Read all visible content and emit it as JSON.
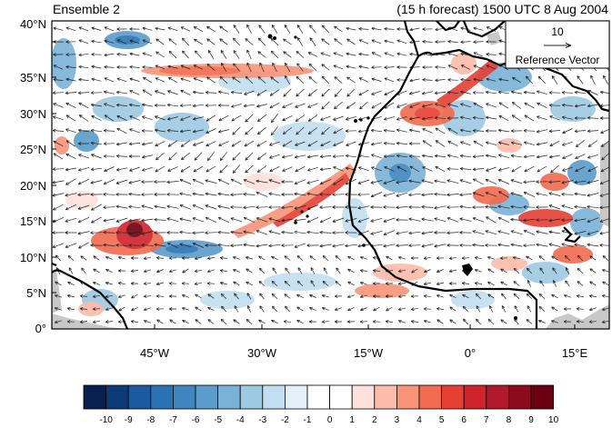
{
  "title_left": "Ensemble 2",
  "title_right": "(15 h forecast) 1500 UTC 8 Aug 2004",
  "reference_vector": {
    "magnitude_label": "10",
    "caption": "Reference Vector"
  },
  "axes": {
    "lat_ticks": [
      "0°",
      "5°N",
      "10°N",
      "15°N",
      "20°N",
      "25°N",
      "30°N",
      "35°N",
      "40°N"
    ],
    "lon_ticks": [
      "45°W",
      "30°W",
      "15°W",
      "0°",
      "15°E"
    ]
  },
  "colorbar": {
    "labels": [
      "-10",
      "-9",
      "-8",
      "-7",
      "-6",
      "-5",
      "-4",
      "-3",
      "-2",
      "-1",
      "0",
      "1",
      "2",
      "3",
      "4",
      "5",
      "6",
      "7",
      "8",
      "9",
      "10"
    ],
    "colors": [
      "#08204f",
      "#0c3a78",
      "#1a5a9e",
      "#2b72b3",
      "#3f86c1",
      "#5a9ccc",
      "#7ab2d7",
      "#9dc9e2",
      "#c2def0",
      "#e3f0fa",
      "#ffffff",
      "#ffffff",
      "#fde1da",
      "#fbbcaa",
      "#f99478",
      "#f26a4f",
      "#e63f34",
      "#d0222a",
      "#b2182b",
      "#8e0b1d",
      "#6a0010"
    ]
  },
  "colors": {
    "land_mask": "#c8c8c8",
    "coastline": "#000000",
    "vector": "#222222"
  }
}
